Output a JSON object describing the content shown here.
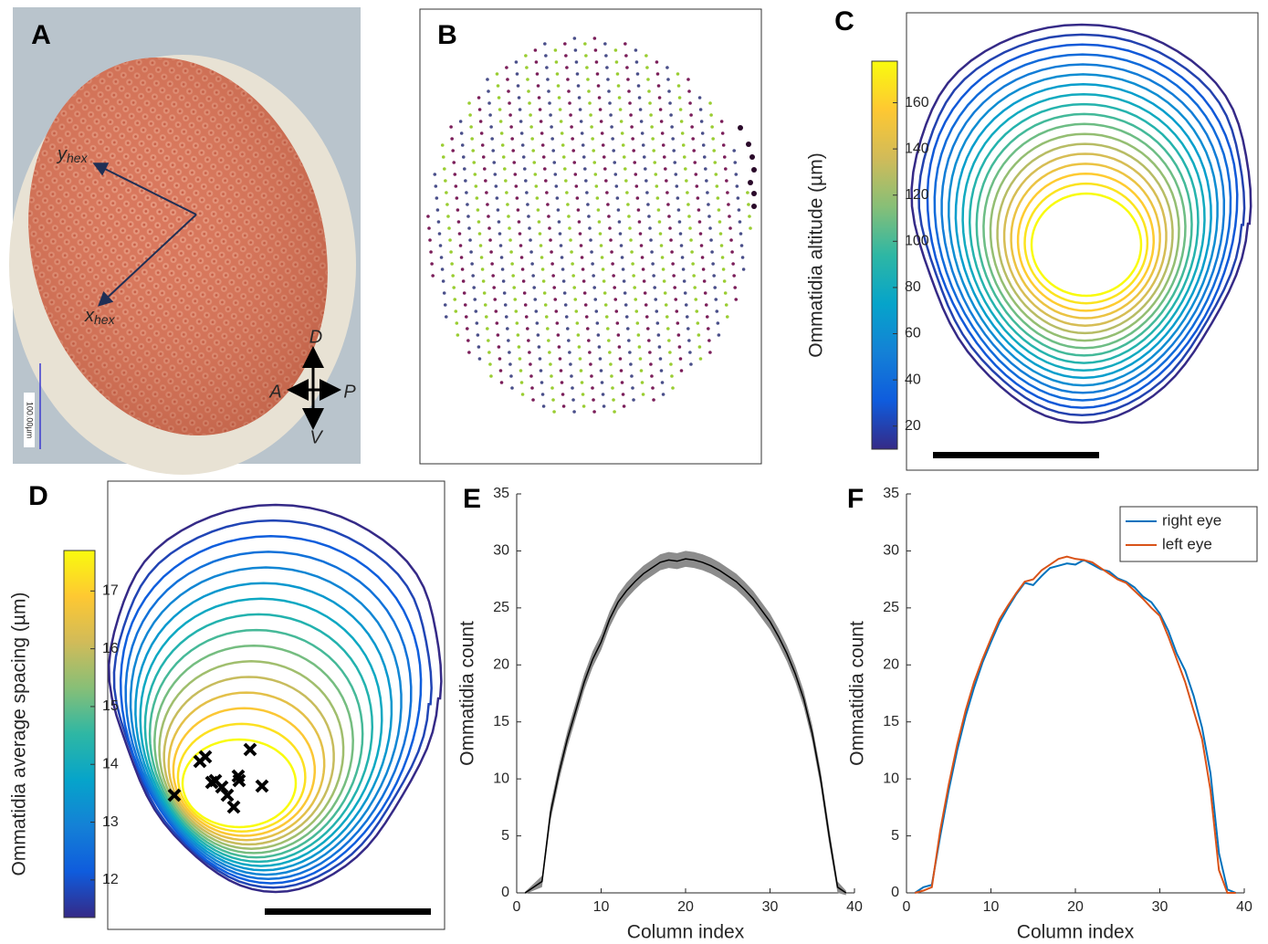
{
  "panel_a": {
    "label": "A",
    "y_axis": {
      "base": "y",
      "sub": "hex"
    },
    "x_axis": {
      "base": "x",
      "sub": "hex"
    },
    "dorsal": "D",
    "ventral": "V",
    "anterior": "A",
    "posterior": "P",
    "scale": "100.00µm"
  },
  "panel_b": {
    "label": "B"
  },
  "chart_data": [
    {
      "type": "colorbar",
      "title": "C",
      "ylabel": "Ommatidia altitude (µm)",
      "ylim": [
        10,
        178
      ],
      "yticks": [
        20,
        40,
        60,
        80,
        100,
        120,
        140,
        160
      ]
    },
    {
      "type": "colorbar",
      "title": "D",
      "ylabel": "Ommatidia average spacing (µm)",
      "ylim": [
        11.35,
        17.7
      ],
      "yticks": [
        12,
        13,
        14,
        15,
        16,
        17
      ]
    },
    {
      "type": "line",
      "title": "E",
      "xlabel": "Column index",
      "ylabel": "Ommatidia count",
      "xlim": [
        0,
        40
      ],
      "xticks": [
        0,
        10,
        20,
        30,
        40
      ],
      "ylim": [
        0,
        35
      ],
      "yticks": [
        0,
        5,
        10,
        15,
        20,
        25,
        30,
        35
      ],
      "x": [
        1,
        2,
        3,
        4,
        5,
        6,
        7,
        8,
        9,
        10,
        11,
        12,
        13,
        14,
        15,
        16,
        17,
        18,
        19,
        20,
        21,
        22,
        23,
        24,
        25,
        26,
        27,
        28,
        29,
        30,
        31,
        32,
        33,
        34,
        35,
        36,
        37,
        38,
        39
      ],
      "series": [
        {
          "color": "#000000",
          "band_color": "#8c8c8c",
          "values": [
            0,
            0.5,
            1,
            7,
            10.5,
            13.5,
            16,
            18.5,
            20.5,
            22,
            24,
            25.5,
            26.5,
            27.3,
            28,
            28.5,
            29,
            29.2,
            29.1,
            29.3,
            29.2,
            29,
            28.7,
            28.3,
            27.8,
            27.3,
            26.6,
            25.8,
            24.8,
            23.8,
            22.5,
            21,
            19.2,
            17,
            14,
            10,
            5,
            0.5,
            0
          ],
          "error": [
            0.1,
            0.3,
            0.5,
            0.7,
            0.7,
            0.7,
            0.7,
            0.7,
            0.7,
            0.7,
            0.7,
            0.7,
            0.7,
            0.7,
            0.7,
            0.7,
            0.7,
            0.7,
            0.7,
            0.7,
            0.7,
            0.7,
            0.7,
            0.7,
            0.7,
            0.7,
            0.7,
            0.7,
            0.7,
            0.7,
            0.7,
            0.7,
            0.7,
            0.7,
            0.7,
            0.7,
            0.7,
            0.5,
            0.2
          ]
        }
      ]
    },
    {
      "type": "line",
      "title": "F",
      "xlabel": "Column index",
      "ylabel": "Ommatidia count",
      "legend": "upper right",
      "xlim": [
        0,
        40
      ],
      "xticks": [
        0,
        10,
        20,
        30,
        40
      ],
      "ylim": [
        0,
        35
      ],
      "yticks": [
        0,
        5,
        10,
        15,
        20,
        25,
        30,
        35
      ],
      "x": [
        1,
        2,
        3,
        4,
        5,
        6,
        7,
        8,
        9,
        10,
        11,
        12,
        13,
        14,
        15,
        16,
        17,
        18,
        19,
        20,
        21,
        22,
        23,
        24,
        25,
        26,
        27,
        28,
        29,
        30,
        31,
        32,
        33,
        34,
        35,
        36,
        37,
        38,
        39
      ],
      "series": [
        {
          "name": "right eye",
          "color": "#0072bd",
          "values": [
            0,
            0.5,
            0.7,
            5,
            9,
            12.5,
            15.5,
            18,
            20.2,
            22,
            23.7,
            25,
            26.2,
            27.2,
            27,
            27.8,
            28.5,
            28.7,
            28.9,
            28.8,
            29.2,
            28.8,
            28.4,
            28.2,
            27.6,
            27.3,
            26.8,
            26,
            25.5,
            24.5,
            23,
            21,
            19.5,
            17.3,
            14.5,
            10.5,
            3.5,
            0.3,
            0
          ]
        },
        {
          "name": "left eye",
          "color": "#d95319",
          "values": [
            0,
            0.2,
            0.5,
            5.5,
            9.5,
            13,
            16,
            18.5,
            20.5,
            22.3,
            24,
            25.2,
            26.3,
            27.3,
            27.5,
            28.3,
            28.8,
            29.3,
            29.5,
            29.3,
            29.2,
            29,
            28.5,
            28,
            27.5,
            27.2,
            26.5,
            25.8,
            25,
            24.3,
            22.5,
            20.5,
            18.5,
            16,
            13.5,
            9,
            2,
            0,
            0
          ]
        }
      ]
    }
  ]
}
